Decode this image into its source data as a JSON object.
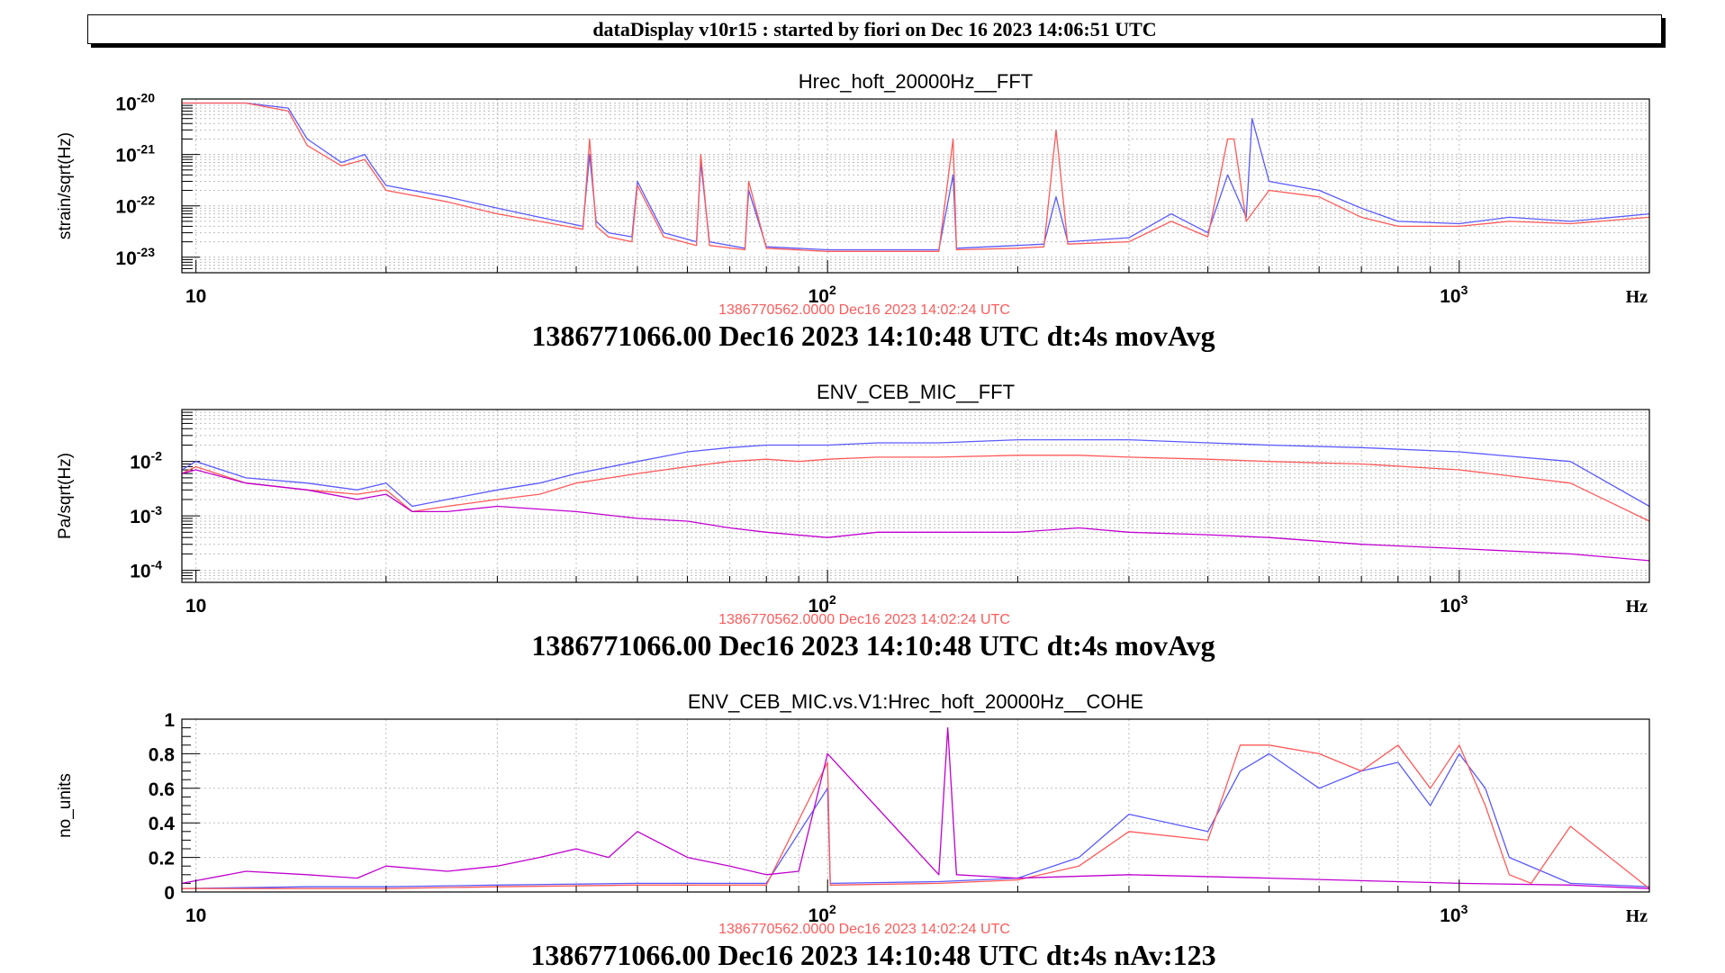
{
  "header": {
    "title": "dataDisplay v10r15 : started by fiori on Dec 16 2023 14:06:51 UTC"
  },
  "colors": {
    "blue": "#5a5aff",
    "red": "#ff5a5a",
    "magenta": "#c000d0",
    "ref_time": "#ff5a5a"
  },
  "chart_data": [
    {
      "type": "line",
      "title": "Hrec_hoft_20000Hz__FFT",
      "ylabel": "strain/sqrt(Hz)",
      "x_unit_label": "Hz",
      "x_scale": "log",
      "y_scale": "log",
      "xlim": [
        9.5,
        2000
      ],
      "ylim": [
        5e-24,
        1.2e-20
      ],
      "grid": true,
      "x_tick_labels": [
        {
          "value": 10,
          "label": "10"
        },
        {
          "value": 100,
          "label": "10",
          "exp": "2"
        },
        {
          "value": 1000,
          "label": "10",
          "exp": "3"
        }
      ],
      "y_tick_labels": [
        {
          "value": 1e-20,
          "label": "10",
          "exp": "-20"
        },
        {
          "value": 1e-21,
          "label": "10",
          "exp": "-21"
        },
        {
          "value": 1e-22,
          "label": "10",
          "exp": "-22"
        },
        {
          "value": 1e-23,
          "label": "10",
          "exp": "-23"
        }
      ],
      "ref_time": "1386770562.0000 Dec16 2023 14:02:24 UTC",
      "footer": "1386771066.00 Dec16 2023 14:10:48 UTC dt:4s movAvg",
      "series": [
        {
          "color": "#5a5aff",
          "x": [
            9.5,
            12,
            14,
            15,
            17,
            18.5,
            19,
            20,
            25,
            30,
            35,
            41,
            42,
            43,
            45,
            49,
            50,
            55,
            62,
            63,
            65,
            74,
            75,
            80,
            100,
            150,
            158,
            160,
            200,
            220,
            230,
            240,
            300,
            350,
            400,
            430,
            460,
            470,
            500,
            600,
            700,
            800,
            1000,
            1200,
            1500,
            2000
          ],
          "y": [
            1e-20,
            1e-20,
            8e-21,
            2e-21,
            7e-22,
            1e-21,
            6e-22,
            2.5e-22,
            1.5e-22,
            9e-23,
            6e-23,
            4e-23,
            1e-21,
            5e-23,
            3e-23,
            2.5e-23,
            3e-22,
            3e-23,
            2e-23,
            7e-22,
            2e-23,
            1.5e-23,
            2e-22,
            1.6e-23,
            1.4e-23,
            1.4e-23,
            4e-22,
            1.5e-23,
            1.7e-23,
            1.8e-23,
            1.5e-22,
            2e-23,
            2.4e-23,
            7e-23,
            3e-23,
            4e-22,
            6e-23,
            5e-21,
            3e-22,
            2e-22,
            9e-23,
            5e-23,
            4.5e-23,
            6e-23,
            5e-23,
            7e-23
          ]
        },
        {
          "color": "#ff5a5a",
          "x": [
            9.5,
            12,
            14,
            15,
            17,
            18.5,
            19,
            20,
            25,
            30,
            35,
            41,
            42,
            43,
            45,
            49,
            50,
            55,
            62,
            63,
            65,
            74,
            75,
            80,
            100,
            150,
            158,
            160,
            200,
            220,
            230,
            240,
            300,
            350,
            400,
            430,
            440,
            460,
            500,
            600,
            700,
            800,
            1000,
            1200,
            1500,
            2000
          ],
          "y": [
            1e-20,
            1e-20,
            7e-21,
            1.5e-21,
            6e-22,
            8e-22,
            5e-22,
            2e-22,
            1.2e-22,
            7e-23,
            5e-23,
            3.5e-23,
            2e-21,
            4e-23,
            2.5e-23,
            2e-23,
            2.5e-22,
            2.5e-23,
            1.7e-23,
            1e-21,
            1.7e-23,
            1.4e-23,
            3e-22,
            1.5e-23,
            1.3e-23,
            1.3e-23,
            2e-21,
            1.4e-23,
            1.5e-23,
            1.6e-23,
            3e-21,
            1.8e-23,
            2e-23,
            5e-23,
            2.5e-23,
            2e-21,
            2e-21,
            5e-23,
            2e-22,
            1.5e-22,
            6e-23,
            4e-23,
            4e-23,
            5e-23,
            4.5e-23,
            6e-23
          ]
        }
      ]
    },
    {
      "type": "line",
      "title": "ENV_CEB_MIC__FFT",
      "ylabel": "Pa/sqrt(Hz)",
      "x_unit_label": "Hz",
      "x_scale": "log",
      "y_scale": "log",
      "xlim": [
        9.5,
        2000
      ],
      "ylim": [
        6e-05,
        0.09
      ],
      "grid": true,
      "x_tick_labels": [
        {
          "value": 10,
          "label": "10"
        },
        {
          "value": 100,
          "label": "10",
          "exp": "2"
        },
        {
          "value": 1000,
          "label": "10",
          "exp": "3"
        }
      ],
      "y_tick_labels": [
        {
          "value": 0.01,
          "label": "10",
          "exp": "-2"
        },
        {
          "value": 0.001,
          "label": "10",
          "exp": "-3"
        },
        {
          "value": 0.0001,
          "label": "10",
          "exp": "-4"
        }
      ],
      "ref_time": "1386770562.0000 Dec16 2023 14:02:24 UTC",
      "footer": "1386771066.00 Dec16 2023 14:10:48 UTC dt:4s movAvg",
      "series": [
        {
          "color": "#5a5aff",
          "x": [
            9.5,
            10,
            12,
            15,
            18,
            20,
            22,
            25,
            30,
            35,
            40,
            50,
            60,
            70,
            80,
            90,
            100,
            120,
            150,
            200,
            250,
            300,
            400,
            500,
            700,
            1000,
            1500,
            2000
          ],
          "y": [
            0.007,
            0.01,
            0.005,
            0.004,
            0.003,
            0.004,
            0.0015,
            0.002,
            0.003,
            0.004,
            0.006,
            0.01,
            0.015,
            0.018,
            0.02,
            0.02,
            0.02,
            0.022,
            0.022,
            0.025,
            0.025,
            0.025,
            0.022,
            0.02,
            0.018,
            0.015,
            0.01,
            0.0015
          ]
        },
        {
          "color": "#ff5a5a",
          "x": [
            9.5,
            10,
            12,
            15,
            18,
            20,
            22,
            25,
            30,
            35,
            40,
            50,
            60,
            70,
            80,
            90,
            100,
            120,
            150,
            200,
            250,
            300,
            400,
            500,
            700,
            1000,
            1500,
            2000
          ],
          "y": [
            0.006,
            0.008,
            0.004,
            0.003,
            0.0025,
            0.003,
            0.0012,
            0.0015,
            0.002,
            0.0025,
            0.004,
            0.006,
            0.008,
            0.01,
            0.011,
            0.01,
            0.011,
            0.012,
            0.012,
            0.013,
            0.013,
            0.012,
            0.011,
            0.01,
            0.009,
            0.007,
            0.004,
            0.0008
          ]
        },
        {
          "color": "#c000d0",
          "x": [
            9.5,
            10,
            12,
            15,
            18,
            20,
            22,
            25,
            30,
            40,
            50,
            60,
            70,
            80,
            100,
            120,
            150,
            200,
            250,
            300,
            400,
            500,
            700,
            1000,
            1500,
            2000
          ],
          "y": [
            0.006,
            0.007,
            0.004,
            0.003,
            0.002,
            0.0025,
            0.0012,
            0.0012,
            0.0015,
            0.0012,
            0.0009,
            0.0008,
            0.0006,
            0.0005,
            0.0004,
            0.0005,
            0.0005,
            0.0005,
            0.0006,
            0.0005,
            0.00045,
            0.0004,
            0.0003,
            0.00025,
            0.0002,
            0.00015
          ]
        }
      ]
    },
    {
      "type": "line",
      "title": "ENV_CEB_MIC.vs.V1:Hrec_hoft_20000Hz__COHE",
      "ylabel": "no_units",
      "x_unit_label": "Hz",
      "x_scale": "log",
      "y_scale": "linear",
      "xlim": [
        9.5,
        2000
      ],
      "ylim": [
        0,
        1
      ],
      "grid": true,
      "x_tick_labels": [
        {
          "value": 10,
          "label": "10"
        },
        {
          "value": 100,
          "label": "10",
          "exp": "2"
        },
        {
          "value": 1000,
          "label": "10",
          "exp": "3"
        }
      ],
      "y_tick_labels": [
        {
          "value": 1,
          "label": "1"
        },
        {
          "value": 0.8,
          "label": "0.8"
        },
        {
          "value": 0.6,
          "label": "0.6"
        },
        {
          "value": 0.4,
          "label": "0.4"
        },
        {
          "value": 0.2,
          "label": "0.2"
        },
        {
          "value": 0,
          "label": "0"
        }
      ],
      "ref_time": "1386770562.0000 Dec16 2023 14:02:24 UTC",
      "footer": "1386771066.00 Dec16 2023 14:10:48 UTC dt:4s nAv:123",
      "series": [
        {
          "color": "#5a5aff",
          "x": [
            9.5,
            15,
            20,
            30,
            50,
            80,
            100,
            101,
            102,
            150,
            200,
            250,
            300,
            400,
            450,
            500,
            600,
            700,
            800,
            900,
            1000,
            1100,
            1200,
            1500,
            2000
          ],
          "y": [
            0.02,
            0.03,
            0.03,
            0.04,
            0.05,
            0.05,
            0.6,
            0.05,
            0.05,
            0.06,
            0.08,
            0.2,
            0.45,
            0.35,
            0.7,
            0.8,
            0.6,
            0.7,
            0.75,
            0.5,
            0.8,
            0.6,
            0.2,
            0.05,
            0.03
          ]
        },
        {
          "color": "#ff5a5a",
          "x": [
            9.5,
            15,
            20,
            30,
            50,
            80,
            100,
            101,
            102,
            150,
            200,
            250,
            300,
            400,
            450,
            500,
            600,
            700,
            800,
            900,
            1000,
            1100,
            1200,
            1300,
            1500,
            2000
          ],
          "y": [
            0.02,
            0.02,
            0.02,
            0.03,
            0.04,
            0.04,
            0.75,
            0.04,
            0.04,
            0.05,
            0.07,
            0.15,
            0.35,
            0.3,
            0.85,
            0.85,
            0.8,
            0.7,
            0.85,
            0.6,
            0.85,
            0.5,
            0.1,
            0.05,
            0.38,
            0.02
          ]
        },
        {
          "color": "#c000d0",
          "x": [
            9.5,
            12,
            15,
            18,
            20,
            25,
            30,
            35,
            40,
            45,
            50,
            60,
            70,
            80,
            90,
            100,
            150,
            155,
            160,
            200,
            300,
            500,
            800,
            1000,
            1500,
            2000
          ],
          "y": [
            0.05,
            0.12,
            0.1,
            0.08,
            0.15,
            0.12,
            0.15,
            0.2,
            0.25,
            0.2,
            0.35,
            0.2,
            0.15,
            0.1,
            0.12,
            0.8,
            0.1,
            0.95,
            0.1,
            0.08,
            0.1,
            0.08,
            0.06,
            0.05,
            0.04,
            0.02
          ]
        }
      ]
    }
  ]
}
